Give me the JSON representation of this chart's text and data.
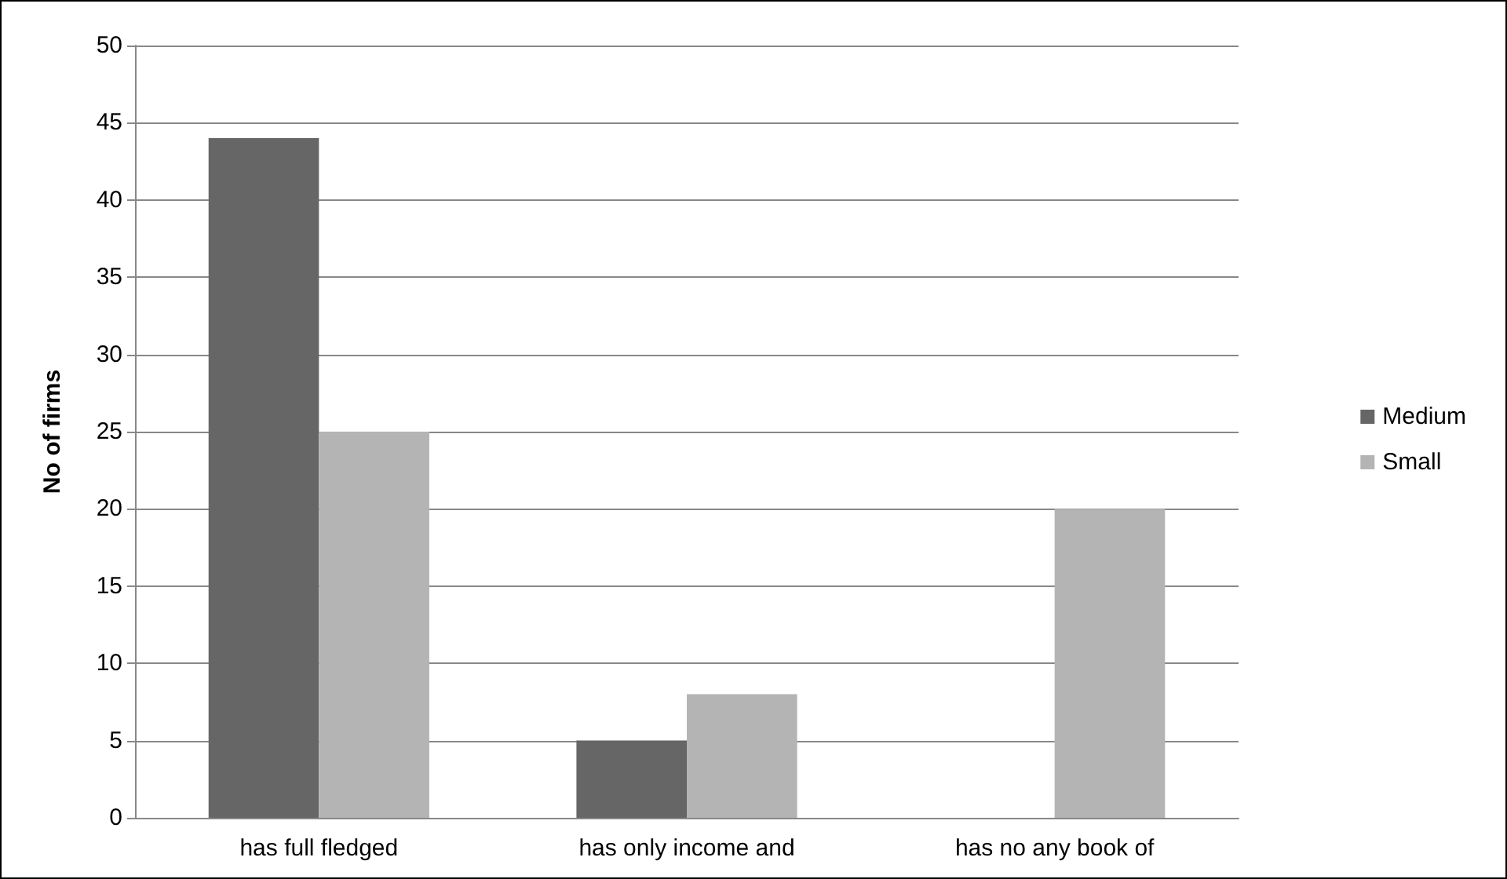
{
  "chart_data": {
    "type": "bar",
    "ylabel": "No of firms",
    "categories": [
      "has full fledged",
      "has only income and",
      "has no any book of"
    ],
    "series": [
      {
        "name": "Medium",
        "color": "#666666",
        "values": [
          44,
          5,
          0
        ]
      },
      {
        "name": "Small",
        "color": "#b4b4b4",
        "values": [
          25,
          8,
          20
        ]
      }
    ],
    "ylim": [
      0,
      50
    ],
    "yticks": [
      0,
      5,
      10,
      15,
      20,
      25,
      30,
      35,
      40,
      45,
      50
    ],
    "grid": "y",
    "legend": "right"
  }
}
